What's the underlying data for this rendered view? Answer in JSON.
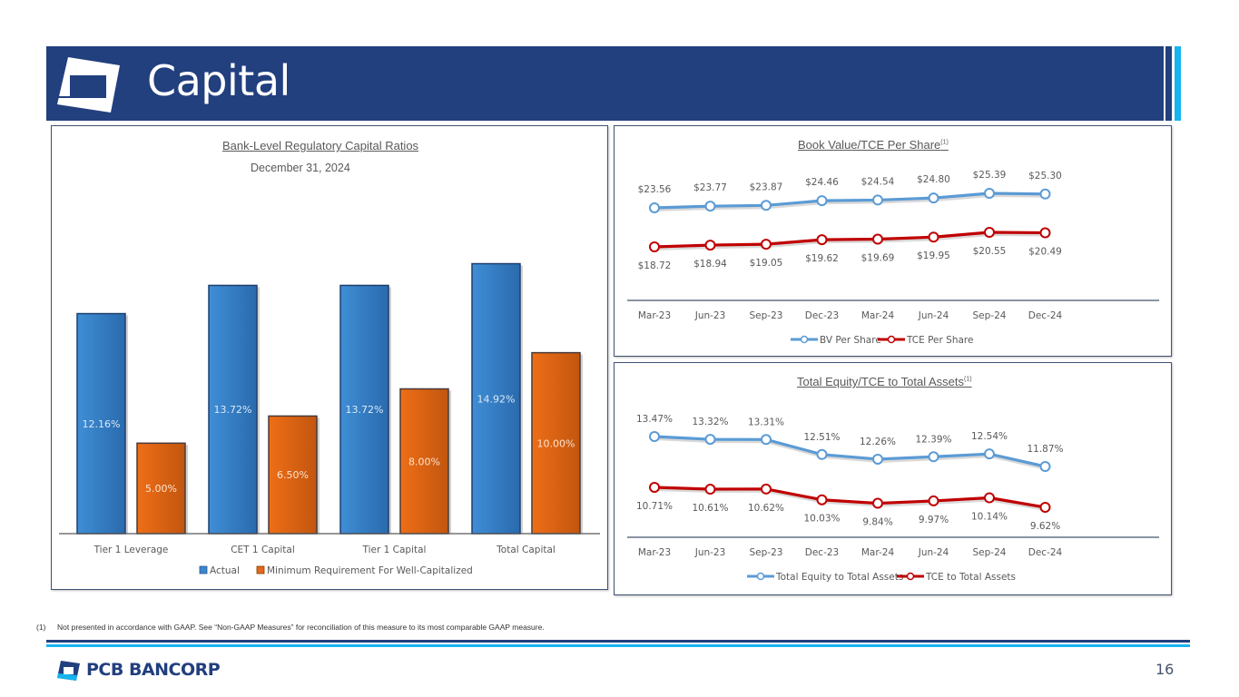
{
  "header": {
    "title": "Capital",
    "colors": {
      "navy": "#223f7e",
      "accent": "#17b4ef"
    }
  },
  "footnote": {
    "marker": "(1)",
    "text": "Not presented in accordance with GAAP. See “Non-GAAP Measures” for reconciliation of this measure to its most comparable GAAP measure."
  },
  "footer": {
    "brand": "PCB BANCORP",
    "page_number": "16"
  },
  "chart_data": [
    {
      "id": "regulatory-capital",
      "type": "bar",
      "title": "Bank-Level Regulatory Capital Ratios",
      "subtitle": "December 31, 2024",
      "categories": [
        "Tier 1 Leverage",
        "CET 1 Capital",
        "Tier 1 Capital",
        "Total Capital"
      ],
      "series": [
        {
          "name": "Actual",
          "color": "#3a87cc",
          "values": [
            12.16,
            13.72,
            13.72,
            14.92
          ],
          "labels": [
            "12.16%",
            "13.72%",
            "13.72%",
            "14.92%"
          ]
        },
        {
          "name": "Minimum Requirement For Well-Capitalized",
          "color": "#e4691a",
          "values": [
            5.0,
            6.5,
            8.0,
            10.0
          ],
          "labels": [
            "5.00%",
            "6.50%",
            "8.00%",
            "10.00%"
          ]
        }
      ],
      "ylim": [
        0,
        16
      ],
      "grid": false,
      "legend": "bottom",
      "xlabel": "",
      "ylabel": ""
    },
    {
      "id": "book-value",
      "type": "line",
      "title": "Book Value/TCE Per Share",
      "title_superscript": "(1)",
      "x": [
        "Mar-23",
        "Jun-23",
        "Sep-23",
        "Dec-23",
        "Mar-24",
        "Jun-24",
        "Sep-24",
        "Dec-24"
      ],
      "series": [
        {
          "name": "BV Per Share",
          "color": "#5b9bd5",
          "values": [
            23.56,
            23.77,
            23.87,
            24.46,
            24.54,
            24.8,
            25.39,
            25.3
          ],
          "labels": [
            "$23.56",
            "$23.77",
            "$23.87",
            "$24.46",
            "$24.54",
            "$24.80",
            "$25.39",
            "$25.30"
          ],
          "label_position": "above"
        },
        {
          "name": "TCE Per Share",
          "color": "#c00000",
          "values": [
            18.72,
            18.94,
            19.05,
            19.62,
            19.69,
            19.95,
            20.55,
            20.49
          ],
          "labels": [
            "$18.72",
            "$18.94",
            "$19.05",
            "$19.62",
            "$19.69",
            "$19.95",
            "$20.55",
            "$20.49"
          ],
          "label_position": "below"
        }
      ],
      "grid": false,
      "legend": "bottom",
      "xlabel": "",
      "ylabel": ""
    },
    {
      "id": "equity-to-assets",
      "type": "line",
      "title": "Total Equity/TCE to Total Assets",
      "title_superscript": "(1)",
      "x": [
        "Mar-23",
        "Jun-23",
        "Sep-23",
        "Dec-23",
        "Mar-24",
        "Jun-24",
        "Sep-24",
        "Dec-24"
      ],
      "series": [
        {
          "name": "Total Equity to Total Assets",
          "color": "#5b9bd5",
          "values": [
            13.47,
            13.32,
            13.31,
            12.51,
            12.26,
            12.39,
            12.54,
            11.87
          ],
          "labels": [
            "13.47%",
            "13.32%",
            "13.31%",
            "12.51%",
            "12.26%",
            "12.39%",
            "12.54%",
            "11.87%"
          ],
          "label_position": "above"
        },
        {
          "name": "TCE to Total Assets",
          "color": "#c00000",
          "values": [
            10.71,
            10.61,
            10.62,
            10.03,
            9.84,
            9.97,
            10.14,
            9.62
          ],
          "labels": [
            "10.71%",
            "10.61%",
            "10.62%",
            "10.03%",
            "9.84%",
            "9.97%",
            "10.14%",
            "9.62%"
          ],
          "label_position": "below"
        }
      ],
      "grid": false,
      "legend": "bottom",
      "xlabel": "",
      "ylabel": ""
    }
  ]
}
